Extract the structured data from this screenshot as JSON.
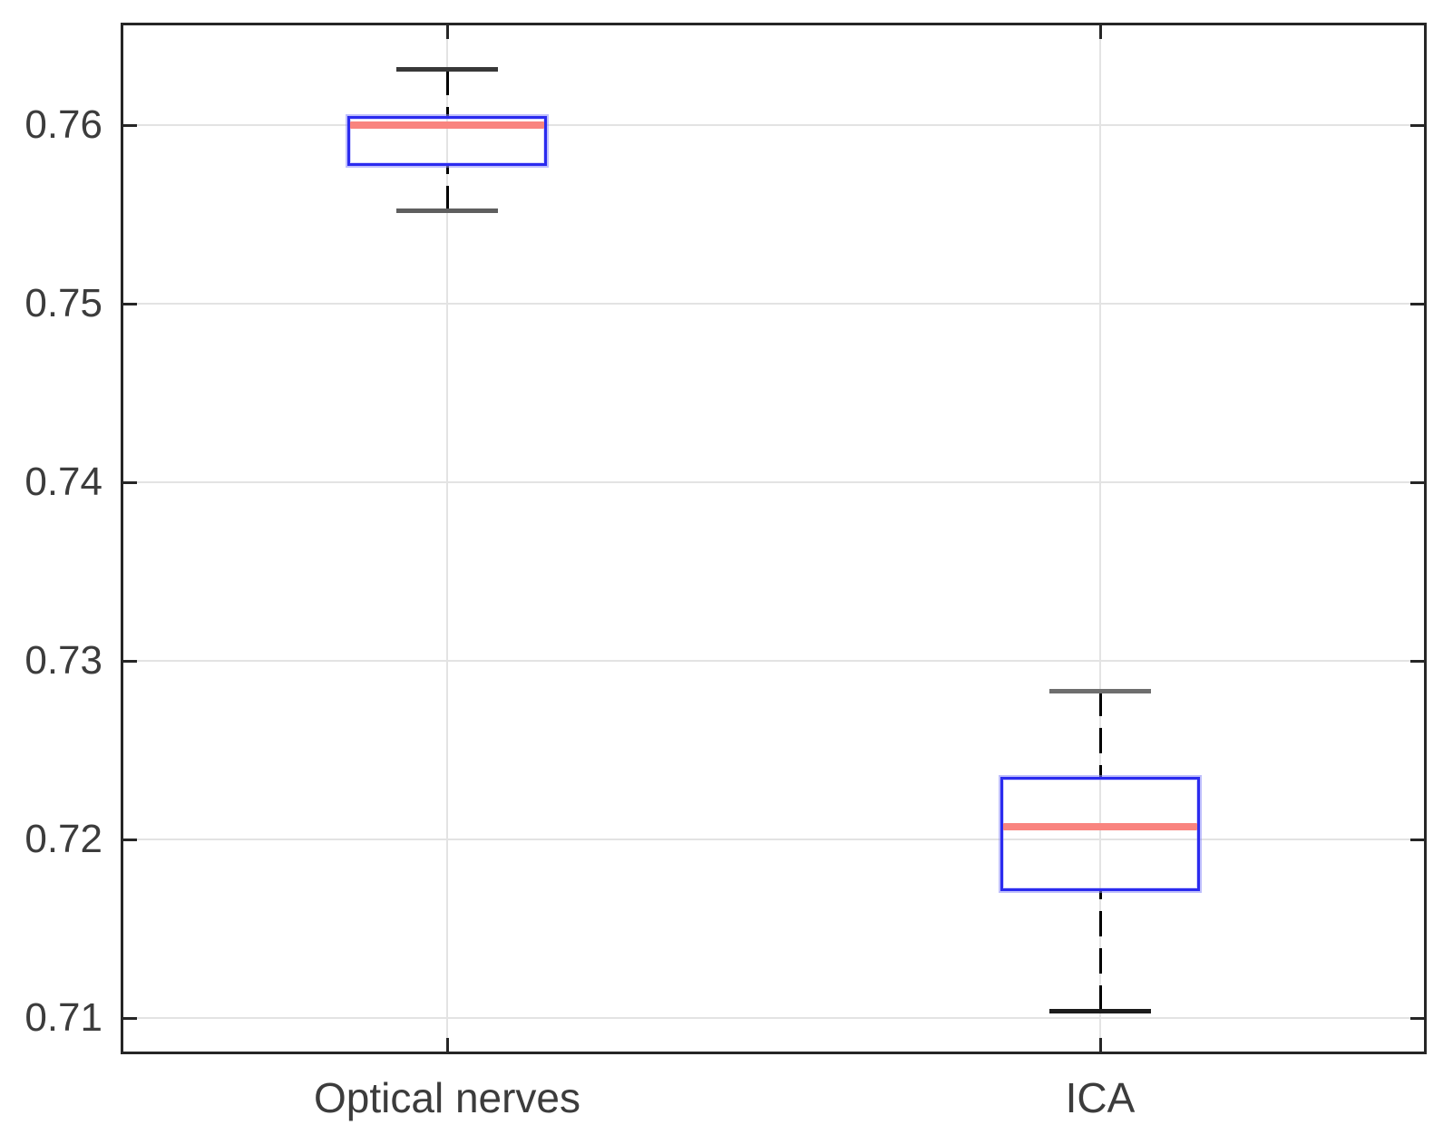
{
  "figure": {
    "background_color": "#ffffff",
    "axis_color": "#262626",
    "grid_color": "#e3e3e3",
    "tick_label_color": "#3c3c3c"
  },
  "chart_data": {
    "type": "boxplot",
    "title": "",
    "xlabel": "",
    "ylabel": "",
    "grid": true,
    "legend": "none",
    "categories": [
      "Optical nerves",
      "ICA"
    ],
    "ylim": [
      0.708,
      0.7657
    ],
    "yticks": [
      0.71,
      0.72,
      0.73,
      0.74,
      0.75,
      0.76
    ],
    "ytick_labels": [
      "0.71",
      "0.72",
      "0.73",
      "0.74",
      "0.75",
      "0.76"
    ],
    "box_edge_color": "#2b2bef",
    "median_color": "#f9847f",
    "whisker_color": "#000000",
    "whisker_style": "dashed",
    "boxes": [
      {
        "category": "Optical nerves",
        "whisker_low": 0.7552,
        "q1": 0.7577,
        "median": 0.76,
        "q3": 0.7605,
        "whisker_high": 0.7631,
        "cap_top_color": "#383838",
        "cap_bottom_color": "#5f5f5f"
      },
      {
        "category": "ICA",
        "whisker_low": 0.7104,
        "q1": 0.7171,
        "median": 0.7207,
        "q3": 0.7235,
        "whisker_high": 0.7283,
        "cap_top_color": "#6e6e6e",
        "cap_bottom_color": "#1c1c1c"
      }
    ]
  }
}
